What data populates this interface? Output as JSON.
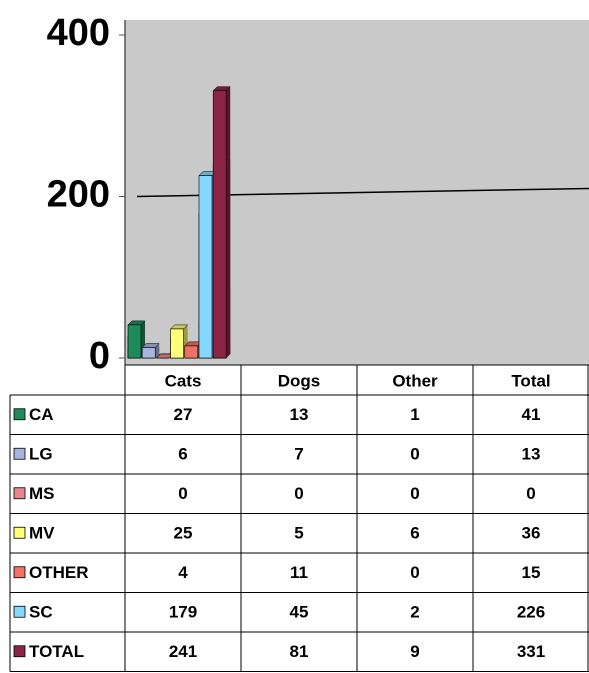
{
  "chart_data": {
    "type": "bar",
    "categories": [
      "Cats",
      "Dogs",
      "Other",
      "Total"
    ],
    "series": [
      {
        "name": "CA",
        "color": "#1e8c5a",
        "values": [
          27,
          13,
          1,
          41
        ]
      },
      {
        "name": "LG",
        "color": "#a8b4e0",
        "values": [
          6,
          7,
          0,
          13
        ]
      },
      {
        "name": "MS",
        "color": "#e8868c",
        "values": [
          0,
          0,
          0,
          0
        ]
      },
      {
        "name": "MV",
        "color": "#ffff78",
        "values": [
          25,
          5,
          6,
          36
        ]
      },
      {
        "name": "OTHER",
        "color": "#f07264",
        "values": [
          4,
          11,
          0,
          15
        ]
      },
      {
        "name": "SC",
        "color": "#84d8ff",
        "values": [
          179,
          45,
          2,
          226
        ]
      },
      {
        "name": "TOTAL",
        "color": "#8c2448",
        "values": [
          241,
          81,
          9,
          331
        ]
      }
    ],
    "ylim": [
      0,
      400
    ],
    "yticks": [
      0,
      200,
      400
    ],
    "grid": true
  }
}
